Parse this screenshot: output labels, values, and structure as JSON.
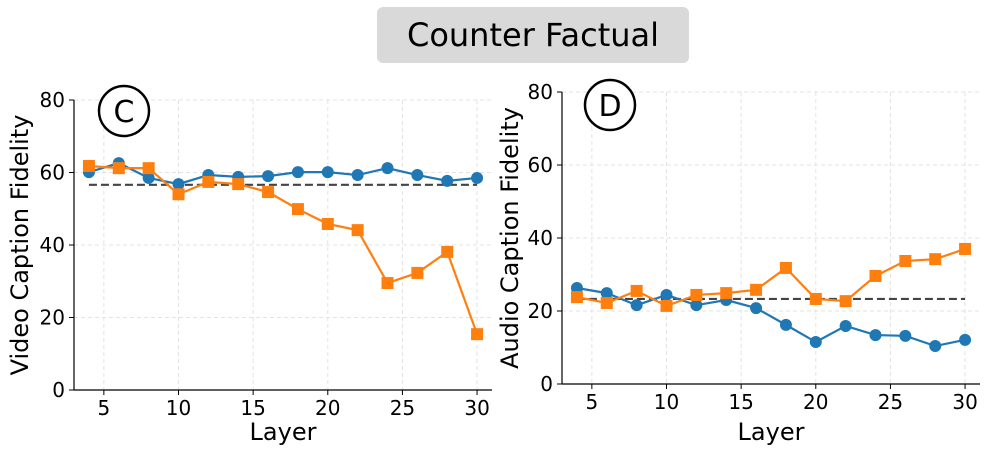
{
  "title": "Counter Factual",
  "chart_data": [
    {
      "type": "line",
      "panel_label": "C",
      "xlabel": "Layer",
      "ylabel": "Video Caption Fidelity",
      "xlim": [
        3,
        31
      ],
      "ylim": [
        0,
        80
      ],
      "xticks": [
        5,
        10,
        15,
        20,
        25,
        30
      ],
      "yticks": [
        0,
        20,
        40,
        60,
        80
      ],
      "grid": true,
      "x": [
        4,
        6,
        8,
        10,
        12,
        14,
        16,
        18,
        20,
        22,
        24,
        26,
        28,
        30
      ],
      "series": [
        {
          "marker": "circle",
          "color": "#1f77b4",
          "values": [
            60.1,
            62.6,
            58.5,
            56.8,
            59.3,
            58.8,
            59.0,
            60.1,
            60.1,
            59.3,
            61.2,
            59.3,
            57.7,
            58.5
          ]
        },
        {
          "marker": "square",
          "color": "#ff7f0e",
          "values": [
            61.8,
            61.2,
            61.2,
            54.0,
            57.4,
            56.8,
            54.6,
            49.9,
            45.8,
            44.1,
            29.5,
            32.3,
            38.1,
            15.4
          ]
        }
      ],
      "baseline": {
        "value": 56.6,
        "style": "dashed",
        "color": "#444444"
      }
    },
    {
      "type": "line",
      "panel_label": "D",
      "xlabel": "Layer",
      "ylabel": "Audio Caption Fidelity",
      "xlim": [
        3,
        31
      ],
      "ylim": [
        0,
        80
      ],
      "xticks": [
        5,
        10,
        15,
        20,
        25,
        30
      ],
      "yticks": [
        0,
        20,
        40,
        60,
        80
      ],
      "grid": true,
      "x": [
        4,
        6,
        8,
        10,
        12,
        14,
        16,
        18,
        20,
        22,
        24,
        26,
        28,
        30
      ],
      "series": [
        {
          "marker": "circle",
          "color": "#1f77b4",
          "values": [
            26.3,
            24.9,
            21.6,
            24.4,
            21.6,
            23.0,
            20.8,
            16.2,
            11.5,
            15.9,
            13.4,
            13.2,
            10.4,
            12.1
          ]
        },
        {
          "marker": "square",
          "color": "#ff7f0e",
          "values": [
            23.8,
            22.2,
            25.5,
            21.4,
            24.4,
            24.9,
            25.8,
            31.8,
            23.3,
            22.7,
            29.6,
            33.7,
            34.2,
            37.0
          ]
        }
      ],
      "baseline": {
        "value": 23.3,
        "style": "dashed",
        "color": "#444444"
      }
    }
  ]
}
